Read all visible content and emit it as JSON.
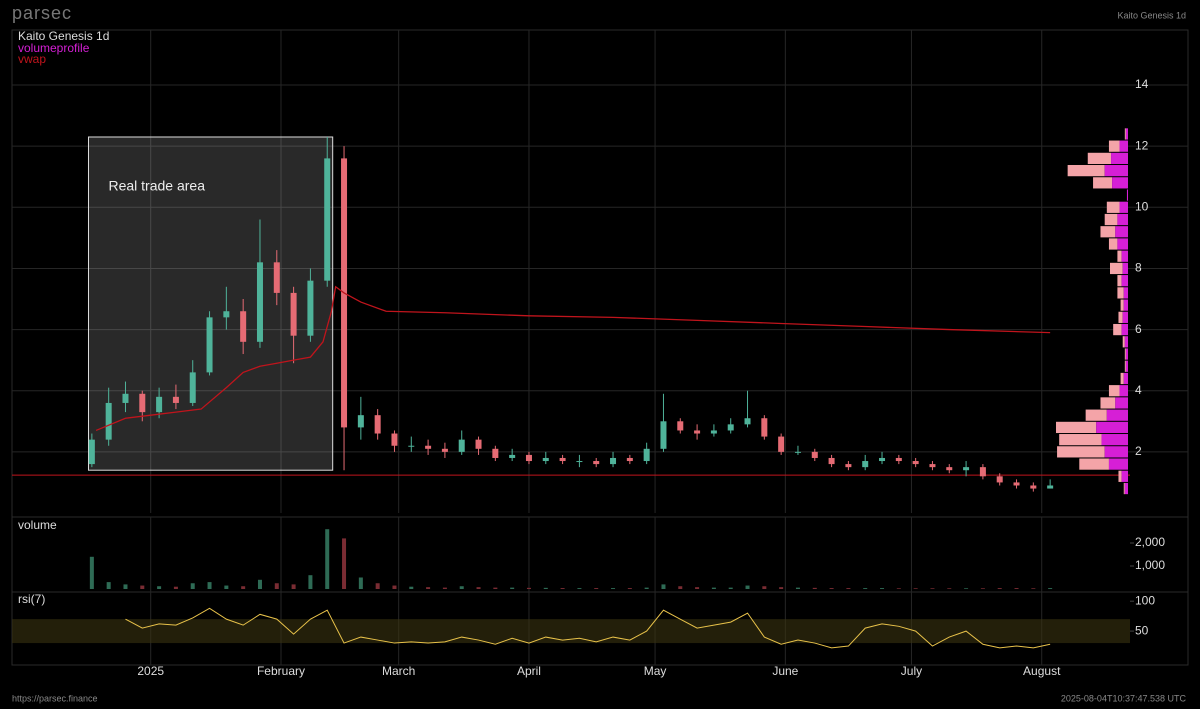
{
  "header": {
    "brand": "parsec",
    "caption": "Kaito Genesis 1d"
  },
  "footer": {
    "url": "https://parsec.finance",
    "timestamp": "2025-08-04T10:37:47.538 UTC"
  },
  "chart_data": [
    {
      "type": "candlestick",
      "title": "Kaito Genesis 1d",
      "up_color": "#4fb39a",
      "down_color": "#e56b74",
      "grid": true,
      "xlim": [
        -33,
        233
      ],
      "ylim": [
        0,
        15.8
      ],
      "yticks": [
        2,
        4,
        6,
        8,
        10,
        12,
        14
      ],
      "x": [
        -14,
        -10,
        -6,
        -2,
        2,
        6,
        10,
        14,
        18,
        22,
        26,
        30,
        34,
        38,
        42,
        46,
        50,
        54,
        58,
        62,
        66,
        70,
        74,
        78,
        82,
        86,
        90,
        94,
        98,
        102,
        106,
        110,
        114,
        118,
        122,
        126,
        130,
        134,
        138,
        142,
        146,
        150,
        154,
        158,
        162,
        166,
        170,
        174,
        178,
        182,
        186,
        190,
        194,
        198,
        202,
        206,
        210,
        214
      ],
      "open": [
        1.6,
        2.4,
        3.6,
        3.9,
        3.3,
        3.8,
        3.6,
        4.6,
        6.4,
        6.6,
        5.6,
        8.2,
        7.2,
        5.8,
        7.6,
        11.6,
        2.8,
        3.2,
        2.6,
        2.2,
        2.2,
        2.1,
        2.0,
        2.4,
        2.1,
        1.8,
        1.9,
        1.7,
        1.8,
        1.7,
        1.7,
        1.6,
        1.8,
        1.7,
        2.1,
        3.0,
        2.7,
        2.6,
        2.7,
        2.9,
        3.1,
        2.5,
        2.0,
        2.0,
        1.8,
        1.6,
        1.5,
        1.7,
        1.8,
        1.7,
        1.6,
        1.5,
        1.4,
        1.5,
        1.2,
        1.0,
        0.9,
        0.8
      ],
      "high": [
        2.6,
        4.1,
        4.3,
        4.0,
        4.1,
        4.2,
        5.0,
        6.6,
        7.4,
        7.0,
        9.6,
        8.6,
        7.4,
        8.0,
        12.3,
        12.0,
        3.8,
        3.4,
        2.7,
        2.5,
        2.4,
        2.3,
        2.7,
        2.5,
        2.2,
        2.1,
        2.0,
        2.0,
        1.9,
        1.9,
        1.8,
        2.0,
        1.9,
        2.3,
        3.9,
        3.1,
        2.9,
        2.9,
        3.1,
        4.0,
        3.2,
        2.6,
        2.2,
        2.1,
        1.9,
        1.7,
        1.9,
        2.0,
        1.9,
        1.8,
        1.7,
        1.6,
        1.7,
        1.6,
        1.3,
        1.1,
        1.0,
        1.1
      ],
      "low": [
        1.5,
        2.2,
        3.3,
        3.0,
        3.1,
        3.4,
        3.5,
        4.5,
        6.0,
        5.2,
        5.4,
        6.8,
        4.9,
        5.6,
        7.4,
        1.4,
        2.4,
        2.4,
        2.0,
        2.0,
        1.9,
        1.8,
        1.9,
        1.9,
        1.7,
        1.7,
        1.6,
        1.6,
        1.6,
        1.5,
        1.5,
        1.5,
        1.6,
        1.6,
        2.0,
        2.6,
        2.4,
        2.5,
        2.6,
        2.8,
        2.4,
        1.9,
        1.9,
        1.7,
        1.5,
        1.4,
        1.4,
        1.6,
        1.6,
        1.5,
        1.4,
        1.3,
        1.2,
        1.1,
        0.9,
        0.8,
        0.7,
        0.8
      ],
      "close": [
        2.4,
        3.6,
        3.9,
        3.3,
        3.8,
        3.6,
        4.6,
        6.4,
        6.6,
        5.6,
        8.2,
        7.2,
        5.8,
        7.6,
        11.6,
        2.8,
        3.2,
        2.6,
        2.2,
        2.2,
        2.1,
        2.0,
        2.4,
        2.1,
        1.8,
        1.9,
        1.7,
        1.8,
        1.7,
        1.7,
        1.6,
        1.8,
        1.7,
        2.1,
        3.0,
        2.7,
        2.6,
        2.7,
        2.9,
        3.1,
        2.5,
        2.0,
        2.0,
        1.8,
        1.6,
        1.5,
        1.7,
        1.8,
        1.7,
        1.6,
        1.5,
        1.4,
        1.5,
        1.2,
        1.0,
        0.9,
        0.8,
        0.9
      ],
      "series": [
        {
          "name": "vwap",
          "color": "#c0141c",
          "x": [
            -13,
            -6,
            0,
            6,
            12,
            18,
            22,
            26,
            30,
            34,
            38,
            41,
            43,
            44,
            46,
            50,
            56,
            70,
            90,
            110,
            130,
            150,
            170,
            190,
            214
          ],
          "values": [
            2.7,
            3.1,
            3.2,
            3.3,
            3.4,
            4.1,
            4.6,
            4.8,
            4.9,
            5.0,
            5.1,
            5.6,
            6.6,
            7.4,
            7.2,
            6.9,
            6.6,
            6.55,
            6.45,
            6.4,
            6.3,
            6.2,
            6.1,
            6.0,
            5.9
          ]
        }
      ],
      "profile": {
        "name": "volumeprofile",
        "color": "#d61fd6",
        "sell_color": "#f4a4a8",
        "bins": [
          0.6,
          1.0,
          1.4,
          1.8,
          2.2,
          2.6,
          3.0,
          3.4,
          3.8,
          4.2,
          4.6,
          5.0,
          5.4,
          5.8,
          6.2,
          6.6,
          7.0,
          7.4,
          7.8,
          8.2,
          8.6,
          9.0,
          9.4,
          9.8,
          10.2,
          10.6,
          11.0,
          11.4,
          11.8,
          12.2,
          12.6
        ],
        "buy": [
          3,
          6,
          18,
          22,
          25,
          30,
          20,
          12,
          8,
          4,
          2,
          2,
          3,
          6,
          5,
          4,
          4,
          6,
          5,
          6,
          10,
          12,
          10,
          8,
          1,
          15,
          22,
          16,
          8,
          2
        ],
        "sell": [
          1,
          3,
          28,
          45,
          40,
          38,
          20,
          14,
          10,
          3,
          1,
          1,
          2,
          8,
          4,
          3,
          6,
          4,
          12,
          4,
          8,
          14,
          12,
          12,
          0,
          18,
          35,
          22,
          10,
          1
        ]
      },
      "hline": {
        "value": 1.24,
        "color": "#c0141c"
      },
      "annotations": [
        {
          "text": "Real trade area",
          "x": [
            -14.8,
            43.3
          ],
          "y": [
            1.4,
            12.3
          ]
        }
      ]
    },
    {
      "type": "bar",
      "title": "volume",
      "up_color": "#2e6b55",
      "down_color": "#7a2c33",
      "ylim": [
        0,
        3130
      ],
      "yticks": [
        {
          "value": 1000,
          "label": "1,000"
        },
        {
          "value": 2000,
          "label": "2,000"
        }
      ],
      "values": [
        1400,
        300,
        200,
        150,
        120,
        100,
        250,
        300,
        150,
        120,
        400,
        250,
        200,
        600,
        2600,
        2200,
        500,
        250,
        150,
        100,
        80,
        60,
        120,
        80,
        60,
        60,
        50,
        50,
        40,
        40,
        40,
        40,
        40,
        60,
        200,
        120,
        80,
        60,
        60,
        150,
        120,
        80,
        60,
        50,
        40,
        40,
        40,
        40,
        30,
        30,
        30,
        30,
        30,
        30,
        40,
        40,
        30,
        40
      ]
    },
    {
      "type": "line",
      "title": "rsi(7)",
      "color": "#e8c24a",
      "band": [
        30,
        70
      ],
      "band_color": "#3a3410",
      "ylim": [
        0,
        107
      ],
      "yticks": [
        50,
        100
      ],
      "values": [
        null,
        null,
        70,
        55,
        62,
        60,
        72,
        88,
        70,
        60,
        78,
        70,
        45,
        70,
        85,
        30,
        40,
        35,
        30,
        32,
        30,
        32,
        40,
        35,
        28,
        38,
        30,
        40,
        35,
        38,
        32,
        40,
        35,
        50,
        85,
        70,
        55,
        60,
        65,
        80,
        40,
        28,
        35,
        30,
        22,
        25,
        55,
        62,
        58,
        50,
        25,
        40,
        50,
        28,
        22,
        25,
        22,
        28
      ],
      "xticks": [
        {
          "value": 0,
          "label": "2025"
        },
        {
          "value": 31,
          "label": "February"
        },
        {
          "value": 59,
          "label": "March"
        },
        {
          "value": 90,
          "label": "April"
        },
        {
          "value": 120,
          "label": "May"
        },
        {
          "value": 151,
          "label": "June"
        },
        {
          "value": 181,
          "label": "July"
        },
        {
          "value": 212,
          "label": "August"
        }
      ]
    }
  ]
}
